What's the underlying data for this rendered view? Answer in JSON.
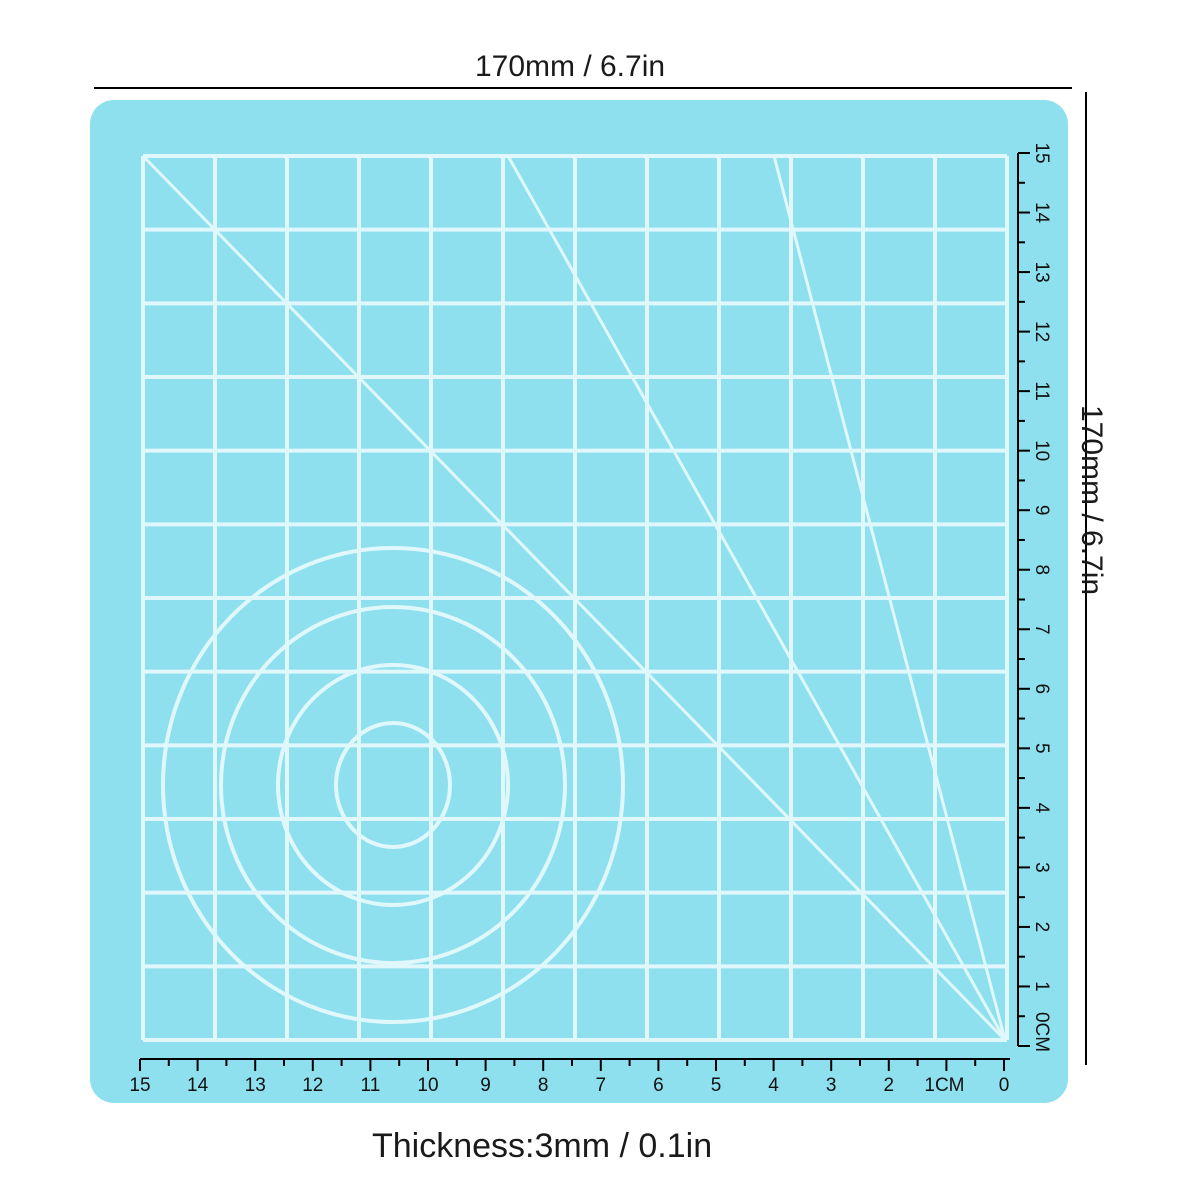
{
  "dimensions": {
    "width": "170mm / 6.7in",
    "height": "170mm / 6.7in",
    "thickness": "Thickness:3mm / 0.1in"
  },
  "mat": {
    "color": "#8ee0ef",
    "line_color": "#e0f8fc",
    "grid_cells": 12
  },
  "rulers": {
    "bottom": {
      "labels": [
        "15",
        "14",
        "13",
        "12",
        "11",
        "10",
        "9",
        "8",
        "7",
        "6",
        "5",
        "4",
        "3",
        "2",
        "1CM",
        "0"
      ]
    },
    "right": {
      "labels": [
        "0CM",
        "1",
        "2",
        "3",
        "4",
        "5",
        "6",
        "7",
        "8",
        "9",
        "10",
        "11",
        "12",
        "13",
        "14",
        "15"
      ]
    }
  }
}
